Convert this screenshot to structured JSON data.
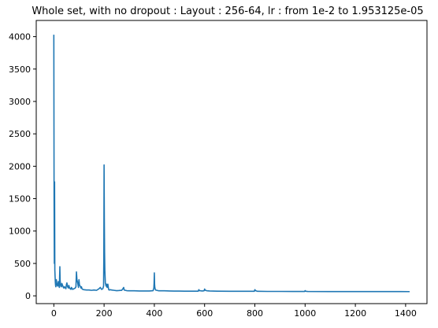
{
  "chart_data": {
    "type": "line",
    "title": "Whole set, with no dropout : Layout : 256-64, lr : from 1e-2 to 1.953125e-05",
    "xlabel": "",
    "ylabel": "",
    "xlim": [
      -70,
      1485
    ],
    "ylim": [
      -120,
      4250
    ],
    "xticks": [
      0,
      200,
      400,
      600,
      800,
      1000,
      1200,
      1400
    ],
    "yticks": [
      0,
      500,
      1000,
      1500,
      2000,
      2500,
      3000,
      3500,
      4000
    ],
    "grid": false,
    "line_color": "#1f77b4",
    "series": [
      {
        "x": [
          0,
          1,
          2,
          3,
          4,
          5,
          6,
          7,
          8,
          10,
          12,
          15,
          18,
          20,
          22,
          24,
          25,
          26,
          28,
          30,
          32,
          35,
          38,
          40,
          42,
          45,
          48,
          50,
          52,
          55,
          58,
          60,
          62,
          65,
          68,
          70,
          75,
          80,
          85,
          88,
          90,
          92,
          95,
          98,
          100,
          102,
          105,
          108,
          110,
          112,
          115,
          120,
          130,
          140,
          150,
          160,
          170,
          180,
          185,
          190,
          195,
          198,
          199,
          200,
          201,
          202,
          203,
          204,
          205,
          208,
          210,
          212,
          215,
          218,
          220,
          225,
          230,
          240,
          250,
          260,
          270,
          275,
          278,
          280,
          285,
          290,
          300,
          320,
          340,
          360,
          380,
          395,
          398,
          399,
          400,
          401,
          402,
          403,
          405,
          410,
          415,
          420,
          440,
          460,
          480,
          500,
          520,
          540,
          560,
          575,
          577,
          580,
          590,
          598,
          600,
          603,
          610,
          620,
          650,
          700,
          750,
          798,
          800,
          803,
          810,
          850,
          900,
          950,
          998,
          1000,
          1003,
          1010,
          1100,
          1200,
          1300,
          1416
        ],
        "y": [
          4030,
          1500,
          500,
          1760,
          400,
          300,
          210,
          160,
          140,
          250,
          180,
          150,
          220,
          160,
          130,
          450,
          250,
          200,
          150,
          140,
          190,
          160,
          130,
          120,
          140,
          130,
          110,
          170,
          200,
          140,
          120,
          160,
          130,
          110,
          100,
          130,
          100,
          110,
          120,
          140,
          370,
          250,
          200,
          130,
          250,
          170,
          150,
          120,
          140,
          110,
          100,
          95,
          90,
          90,
          85,
          90,
          85,
          110,
          130,
          100,
          110,
          150,
          600,
          2020,
          1200,
          670,
          400,
          300,
          200,
          150,
          180,
          130,
          180,
          100,
          90,
          95,
          90,
          85,
          80,
          82,
          85,
          110,
          130,
          90,
          85,
          80,
          78,
          78,
          75,
          75,
          75,
          80,
          120,
          200,
          355,
          180,
          130,
          110,
          90,
          85,
          80,
          78,
          78,
          75,
          73,
          73,
          72,
          72,
          72,
          72,
          95,
          80,
          75,
          78,
          105,
          85,
          78,
          75,
          72,
          70,
          70,
          70,
          95,
          80,
          70,
          68,
          68,
          67,
          67,
          80,
          70,
          67,
          66,
          66,
          66,
          65
        ]
      }
    ]
  }
}
